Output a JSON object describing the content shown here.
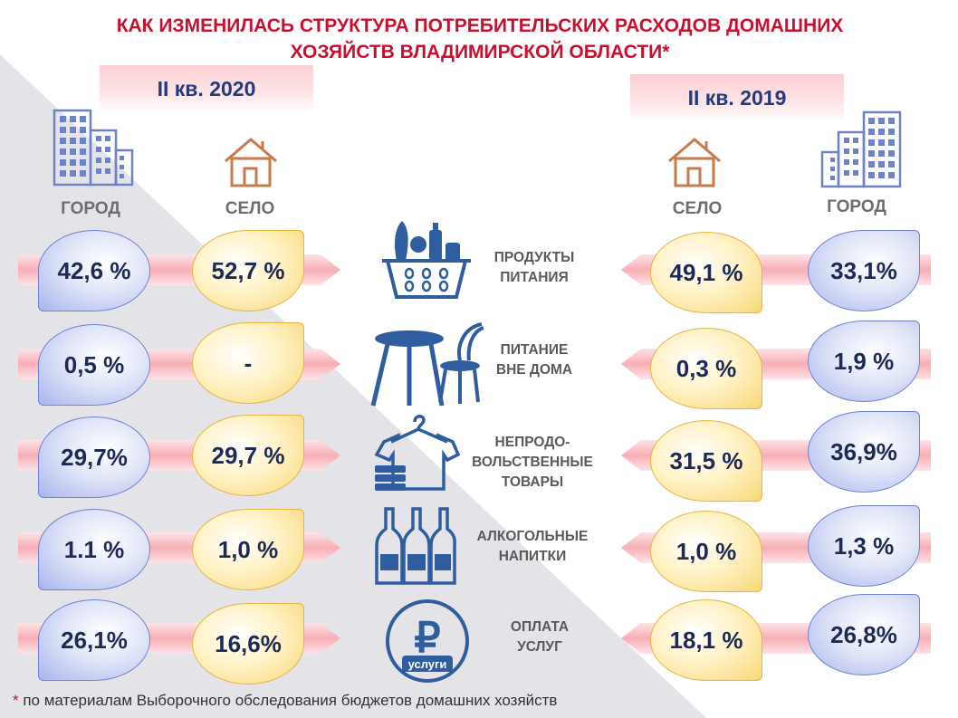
{
  "title": {
    "line1": "КАК ИЗМЕНИЛАСЬ СТРУКТУРА ПОТРЕБИТЕЛЬСКИХ РАСХОДОВ ДОМАШНИХ",
    "line2": "ХОЗЯЙСТВ ВЛАДИМИРСКОЙ ОБЛАСТИ*"
  },
  "periods": {
    "left": "II кв. 2020",
    "right": "II кв. 2019"
  },
  "columns": {
    "city": "ГОРОД",
    "village": "СЕЛО"
  },
  "categories": [
    {
      "line1": "ПРОДУКТЫ",
      "line2": "ПИТАНИЯ",
      "line3": "",
      "icon": "grocery-basket-icon"
    },
    {
      "line1": "ПИТАНИЕ",
      "line2": "ВНЕ ДОМА",
      "line3": "",
      "icon": "cafe-table-chair-icon"
    },
    {
      "line1": "НЕПРОДО-",
      "line2": "ВОЛЬСТВЕННЫЕ",
      "line3": "ТОВАРЫ",
      "icon": "clothes-hanger-icon"
    },
    {
      "line1": "АЛКОГОЛЬНЫЕ",
      "line2": "НАПИТКИ",
      "line3": "",
      "icon": "bottles-icon"
    },
    {
      "line1": "ОПЛАТА",
      "line2": "УСЛУГ",
      "line3": "",
      "icon": "ruble-coin-icon"
    }
  ],
  "ruble_coin": {
    "symbol": "₽",
    "caption": "услуги"
  },
  "values_2020": {
    "city": [
      "42,6 %",
      "0,5 %",
      "29,7%",
      "1.1 %",
      "26,1%"
    ],
    "village": [
      "52,7 %",
      "-",
      "29,7 %",
      "1,0 %",
      "16,6%"
    ]
  },
  "values_2019": {
    "village": [
      "49,1 %",
      "0,3 %",
      "31,5 %",
      "1,0 %",
      "18,1 %"
    ],
    "city": [
      "33,1%",
      "1,9 %",
      "36,9%",
      "1,3 %",
      "26,8%"
    ]
  },
  "footnote": {
    "star": "*",
    "text": " по материалам  Выборочного обследования бюджетов домашних  хозяйств"
  },
  "colors": {
    "title": "#c8102e",
    "period_text": "#243a7a",
    "city_bubble": "#a8b5ec",
    "village_bubble": "#f8d775",
    "band": "#f7aeb6",
    "icon_blue": "#2f5d9e",
    "icon_brown": "#c97a4a"
  }
}
